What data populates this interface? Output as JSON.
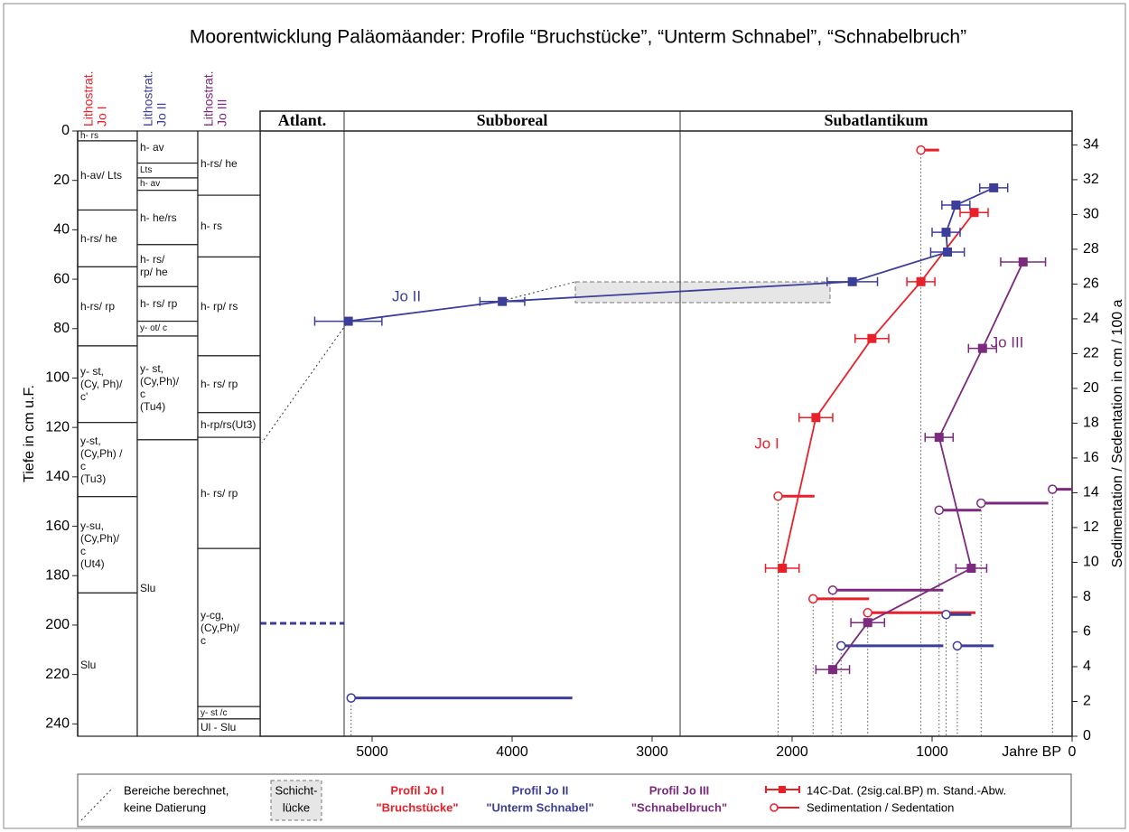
{
  "chart_data": {
    "type": "scatter",
    "title": "Moorentwicklung Paläomäander: Profile “Bruchstücke”, “Unterm Schnabel”, “Schnabelbruch”",
    "ylabel": "Tiefe in cm u.F.",
    "y2label": "Sedimentation / Sedentation in cm / 100 a",
    "xlabel": "Jahre BP",
    "xlim": [
      5800,
      0
    ],
    "ylim": [
      0,
      245
    ],
    "y2lim": [
      0,
      34.8
    ],
    "xticks": [
      5000,
      4000,
      3000,
      2000,
      1000,
      0
    ],
    "yticks": [
      0,
      20,
      40,
      60,
      80,
      100,
      120,
      140,
      160,
      180,
      200,
      220,
      240
    ],
    "y2ticks": [
      0,
      2,
      4,
      6,
      8,
      10,
      12,
      14,
      16,
      18,
      20,
      22,
      24,
      26,
      28,
      30,
      32,
      34
    ],
    "periods": [
      {
        "name": "Atlant.",
        "start": 5800,
        "end": 5200
      },
      {
        "name": "Subboreal",
        "start": 5200,
        "end": 2800
      },
      {
        "name": "Subatlantikum",
        "start": 2800,
        "end": 0
      }
    ],
    "lithostrat": [
      {
        "header": [
          "Lithostrat.",
          "Jo I"
        ],
        "color": "#e8202a",
        "layers": [
          {
            "label": "h- rs",
            "top": 0,
            "bottom": 4
          },
          {
            "label": "h-av/ Lts",
            "top": 4,
            "bottom": 32
          },
          {
            "label": "h-rs/ he",
            "top": 32,
            "bottom": 55
          },
          {
            "label": "h-rs/ rp",
            "top": 55,
            "bottom": 87
          },
          {
            "label": "y- st,\n(Cy, Ph)/\nc'",
            "top": 87,
            "bottom": 118
          },
          {
            "label": "y-st,\n(Cy,Ph) /\nc\n(Tu3)",
            "top": 118,
            "bottom": 148
          },
          {
            "label": "y-su,\n(Cy,Ph)/\nc\n(Ut4)",
            "top": 148,
            "bottom": 187
          },
          {
            "label": "Slu",
            "top": 187,
            "bottom": 245
          }
        ]
      },
      {
        "header": [
          "Lithostrat.",
          "Jo II"
        ],
        "color": "#3c3f99",
        "layers": [
          {
            "label": "h- av",
            "top": 0,
            "bottom": 13
          },
          {
            "label": "Lts",
            "top": 13,
            "bottom": 19
          },
          {
            "label": "h- av",
            "top": 19,
            "bottom": 24
          },
          {
            "label": "h- he/rs",
            "top": 24,
            "bottom": 46
          },
          {
            "label": "h- rs/\nrp/ he",
            "top": 46,
            "bottom": 63
          },
          {
            "label": "h- rs/ rp",
            "top": 63,
            "bottom": 77
          },
          {
            "label": "y- ot/ c",
            "top": 77,
            "bottom": 83
          },
          {
            "label": "y- st,\n(Cy,Ph)/\nc\n(Tu4)",
            "top": 83,
            "bottom": 125
          },
          {
            "label": "Slu",
            "top": 125,
            "bottom": 245
          }
        ]
      },
      {
        "header": [
          "Lithostrat.",
          "Jo III"
        ],
        "color": "#7b2a7e",
        "layers": [
          {
            "label": "h-rs/ he",
            "top": 0,
            "bottom": 26
          },
          {
            "label": "h- rs",
            "top": 26,
            "bottom": 51
          },
          {
            "label": "h- rp/ rs",
            "top": 51,
            "bottom": 91
          },
          {
            "label": "h- rs/ rp",
            "top": 91,
            "bottom": 114
          },
          {
            "label": "h-rp/rs(Ut3)",
            "top": 114,
            "bottom": 124
          },
          {
            "label": "h- rs/ rp",
            "top": 124,
            "bottom": 169
          },
          {
            "label": "y-cg,\n(Cy,Ph)/\nc",
            "top": 169,
            "bottom": 233
          },
          {
            "label": "y- st /c",
            "top": 233,
            "bottom": 238
          },
          {
            "label": "Ul - Slu",
            "top": 238,
            "bottom": 245
          }
        ]
      }
    ],
    "series": [
      {
        "name": "Jo I",
        "color": "#e8202a",
        "x": [
          700,
          1080,
          1430,
          1830,
          2070
        ],
        "values": [
          33,
          61,
          84,
          116,
          177
        ],
        "errors": [
          100,
          100,
          120,
          120,
          120
        ]
      },
      {
        "name": "Jo II",
        "color": "#3c3f99",
        "x": [
          560,
          830,
          900,
          890,
          1570,
          4070,
          5170
        ],
        "values": [
          23,
          30,
          41,
          49,
          61,
          69,
          77
        ],
        "errors": [
          100,
          100,
          100,
          120,
          180,
          160,
          240
        ]
      },
      {
        "name": "Jo III",
        "color": "#7b2a7e",
        "x": [
          350,
          640,
          950,
          720,
          1460,
          1710
        ],
        "values": [
          53,
          88,
          124,
          177,
          199,
          218
        ],
        "errors": [
          160,
          100,
          100,
          110,
          120,
          120
        ]
      }
    ],
    "sedimentation": [
      {
        "color": "#e8202a",
        "axis": "y2",
        "x": [
          1080,
          2100,
          1850,
          1460
        ],
        "end": [
          950,
          1840,
          1450,
          690
        ],
        "values": [
          33.7,
          13.8,
          7.9,
          7.1
        ]
      },
      {
        "color": "#3c3f99",
        "axis": "y2",
        "x": [
          5150,
          1650,
          820,
          900
        ],
        "end": [
          3570,
          920,
          560,
          720
        ],
        "values": [
          2.2,
          5.2,
          5.2,
          7.0
        ]
      },
      {
        "color": "#7b2a7e",
        "axis": "y2",
        "x": [
          1710,
          950,
          650,
          140
        ],
        "end": [
          920,
          650,
          170,
          0
        ],
        "values": [
          8.4,
          13.0,
          13.4,
          14.2
        ]
      }
    ],
    "legend": {
      "calc": [
        "Bereiche berechnet,",
        "keine Datierung"
      ],
      "gap": [
        "Schicht-",
        "lücke"
      ],
      "profiles": [
        {
          "name": "Profil Jo I",
          "site": "\"Bruchstücke\"",
          "color": "#e8202a"
        },
        {
          "name": "Profil Jo II",
          "site": "\"Unterm Schnabel\"",
          "color": "#3c3f99"
        },
        {
          "name": "Profil Jo III",
          "site": "\"Schnabelbruch\"",
          "color": "#7b2a7e"
        }
      ],
      "dating": "14C-Dat. (2sig.cal.BP) m. Stand.-Abw.",
      "sed": "Sedimentation / Sedentation"
    }
  }
}
